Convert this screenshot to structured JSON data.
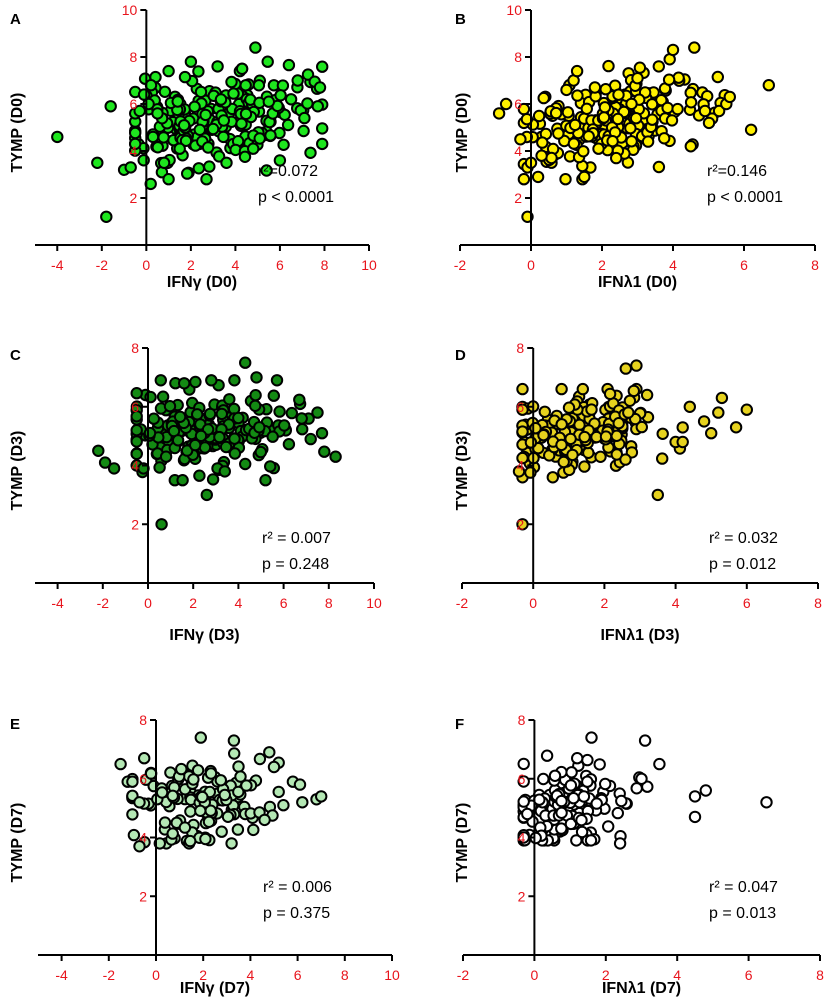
{
  "figure": {
    "colors": {
      "tick_label": "#e8141c",
      "axis": "#000000",
      "point_stroke": "#000000"
    }
  },
  "chart_data": [
    {
      "type": "scatter",
      "panel_label": "A",
      "xlabel": "IFNγ (D0)",
      "ylabel": "TYMP (D0)",
      "xlim": [
        -5,
        10
      ],
      "ylim": [
        0,
        10
      ],
      "xticks": [
        -4,
        -2,
        0,
        2,
        4,
        6,
        8,
        10
      ],
      "yticks": [
        2,
        4,
        6,
        8,
        10
      ],
      "stats": [
        "r²=0.072",
        "p < 0.0001"
      ],
      "point_color": "#1ee61e",
      "seed": 11,
      "n_points": 240,
      "points": [
        [
          -4.0,
          4.6
        ],
        [
          -2.2,
          3.5
        ],
        [
          -1.8,
          1.2
        ],
        [
          -1.6,
          5.9
        ],
        [
          -1.0,
          3.2
        ],
        [
          -0.7,
          3.3
        ],
        [
          -0.5,
          4.3
        ],
        [
          -0.3,
          5.7
        ],
        [
          -0.1,
          6.4
        ],
        [
          0.1,
          6.0
        ],
        [
          0.3,
          4.6
        ],
        [
          0.5,
          5.6
        ],
        [
          0.7,
          3.1
        ],
        [
          1.0,
          2.8
        ],
        [
          1.0,
          7.4
        ],
        [
          2.0,
          7.8
        ],
        [
          2.7,
          2.8
        ],
        [
          3.2,
          7.6
        ],
        [
          4.2,
          7.4
        ],
        [
          4.3,
          7.5
        ],
        [
          4.9,
          8.4
        ],
        [
          6.0,
          3.6
        ],
        [
          6.5,
          6.2
        ],
        [
          6.8,
          7.0
        ],
        [
          7.7,
          5.9
        ],
        [
          7.8,
          6.7
        ],
        [
          7.9,
          4.3
        ],
        [
          0.8,
          3.5
        ],
        [
          1.5,
          4.1
        ],
        [
          2.4,
          4.9
        ],
        [
          3.6,
          3.5
        ],
        [
          4.8,
          4.1
        ],
        [
          5.5,
          6.1
        ],
        [
          7.1,
          5.4
        ]
      ]
    },
    {
      "type": "scatter",
      "panel_label": "B",
      "xlabel": "IFNλ1 (D0)",
      "ylabel": "TYMP (D0)",
      "xlim": [
        -2,
        8
      ],
      "ylim": [
        0,
        10
      ],
      "xticks": [
        -2,
        0,
        2,
        4,
        6,
        8
      ],
      "yticks": [
        2,
        4,
        6,
        8,
        10
      ],
      "stats": [
        "r²=0.146",
        "p < 0.0001"
      ],
      "point_color": "#fff000",
      "seed": 23,
      "n_points": 240,
      "points": [
        [
          -0.9,
          5.6
        ],
        [
          -0.7,
          6.0
        ],
        [
          -0.3,
          4.5
        ],
        [
          -0.1,
          1.2
        ],
        [
          -0.1,
          3.3
        ],
        [
          0.0,
          3.5
        ],
        [
          0.2,
          2.9
        ],
        [
          0.3,
          3.8
        ],
        [
          1.0,
          6.6
        ],
        [
          1.2,
          7.0
        ],
        [
          1.3,
          7.4
        ],
        [
          1.8,
          6.7
        ],
        [
          3.0,
          7.1
        ],
        [
          3.6,
          7.6
        ],
        [
          4.0,
          8.3
        ],
        [
          4.6,
          8.4
        ],
        [
          4.9,
          5.7
        ],
        [
          5.3,
          5.7
        ],
        [
          5.5,
          6.0
        ],
        [
          5.6,
          6.3
        ],
        [
          6.2,
          4.9
        ],
        [
          6.7,
          6.8
        ],
        [
          4.5,
          4.2
        ],
        [
          3.3,
          4.4
        ],
        [
          2.4,
          3.7
        ],
        [
          1.9,
          4.1
        ],
        [
          1.5,
          2.9
        ]
      ]
    },
    {
      "type": "scatter",
      "panel_label": "C",
      "xlabel": "IFNγ (D3)",
      "ylabel": "TYMP (D3)",
      "xlim": [
        -5,
        10
      ],
      "ylim": [
        0,
        8
      ],
      "xticks": [
        -4,
        -2,
        0,
        2,
        4,
        6,
        8,
        10
      ],
      "yticks": [
        2,
        4,
        6,
        8
      ],
      "stats": [
        "r² = 0.007",
        "p = 0.248"
      ],
      "point_color": "#138a13",
      "seed": 37,
      "n_points": 220,
      "points": [
        [
          -2.2,
          4.5
        ],
        [
          -1.9,
          4.1
        ],
        [
          -1.5,
          3.9
        ],
        [
          -0.2,
          3.9
        ],
        [
          0.6,
          2.0
        ],
        [
          0.8,
          4.3
        ],
        [
          2.6,
          3.0
        ],
        [
          4.3,
          7.5
        ],
        [
          4.8,
          7.0
        ],
        [
          7.5,
          5.8
        ],
        [
          7.7,
          5.1
        ],
        [
          8.3,
          4.3
        ],
        [
          7.2,
          4.9
        ],
        [
          6.8,
          5.6
        ],
        [
          5.2,
          3.5
        ],
        [
          3.4,
          3.8
        ],
        [
          1.6,
          6.8
        ],
        [
          2.8,
          6.9
        ]
      ]
    },
    {
      "type": "scatter",
      "panel_label": "D",
      "xlabel": "IFNλ1 (D3)",
      "ylabel": "TYMP (D3)",
      "xlim": [
        -2,
        8
      ],
      "ylim": [
        0,
        8
      ],
      "xticks": [
        -2,
        0,
        2,
        4,
        6,
        8
      ],
      "yticks": [
        2,
        4,
        6,
        8
      ],
      "stats": [
        "r² = 0.032",
        "p = 0.012"
      ],
      "point_color": "#e6d21e",
      "seed": 41,
      "n_points": 220,
      "points": [
        [
          -0.3,
          2.0
        ],
        [
          -0.4,
          3.8
        ],
        [
          -0.3,
          5.9
        ],
        [
          2.6,
          7.3
        ],
        [
          2.9,
          7.4
        ],
        [
          3.5,
          3.0
        ],
        [
          4.0,
          4.8
        ],
        [
          4.2,
          4.8
        ],
        [
          4.8,
          5.5
        ],
        [
          5.0,
          5.1
        ],
        [
          5.2,
          5.8
        ],
        [
          5.3,
          6.3
        ],
        [
          5.7,
          5.3
        ],
        [
          6.0,
          5.9
        ],
        [
          4.4,
          6.0
        ],
        [
          3.2,
          6.4
        ]
      ]
    },
    {
      "type": "scatter",
      "panel_label": "E",
      "xlabel": "IFNγ (D7)",
      "ylabel": "TYMP (D7)",
      "xlim": [
        -5,
        10
      ],
      "ylim": [
        0,
        8
      ],
      "xticks": [
        -4,
        -2,
        0,
        2,
        4,
        6,
        8,
        10
      ],
      "yticks": [
        2,
        4,
        6,
        8
      ],
      "stats": [
        "r² = 0.006",
        "p = 0.375"
      ],
      "point_color": "#b4e8b4",
      "seed": 53,
      "n_points": 150,
      "points": [
        [
          -1.5,
          6.5
        ],
        [
          -1.2,
          5.9
        ],
        [
          -1.0,
          5.9
        ],
        [
          -0.7,
          3.7
        ],
        [
          -0.5,
          6.7
        ],
        [
          1.9,
          7.4
        ],
        [
          3.3,
          7.3
        ],
        [
          4.8,
          6.9
        ],
        [
          5.0,
          6.4
        ],
        [
          5.8,
          5.9
        ],
        [
          6.1,
          5.8
        ],
        [
          6.2,
          5.2
        ],
        [
          6.8,
          5.3
        ],
        [
          7.0,
          5.4
        ],
        [
          5.4,
          5.1
        ],
        [
          4.6,
          4.6
        ]
      ]
    },
    {
      "type": "scatter",
      "panel_label": "F",
      "xlabel": "IFNλ1 (D7)",
      "ylabel": "TYMP (D7)",
      "xlim": [
        -2,
        8
      ],
      "ylim": [
        0,
        8
      ],
      "xticks": [
        -2,
        0,
        2,
        4,
        6,
        8
      ],
      "yticks": [
        2,
        4,
        6,
        8
      ],
      "stats": [
        "r² = 0.047",
        "p = 0.013"
      ],
      "point_color": "#ffffff",
      "seed": 67,
      "n_points": 150,
      "points": [
        [
          -0.3,
          4.0
        ],
        [
          -0.2,
          4.8
        ],
        [
          1.2,
          6.7
        ],
        [
          1.6,
          7.4
        ],
        [
          3.1,
          7.3
        ],
        [
          3.5,
          6.5
        ],
        [
          4.5,
          5.4
        ],
        [
          4.5,
          4.7
        ],
        [
          4.8,
          5.6
        ],
        [
          6.5,
          5.2
        ],
        [
          2.4,
          3.8
        ],
        [
          3.0,
          6.0
        ]
      ]
    }
  ]
}
